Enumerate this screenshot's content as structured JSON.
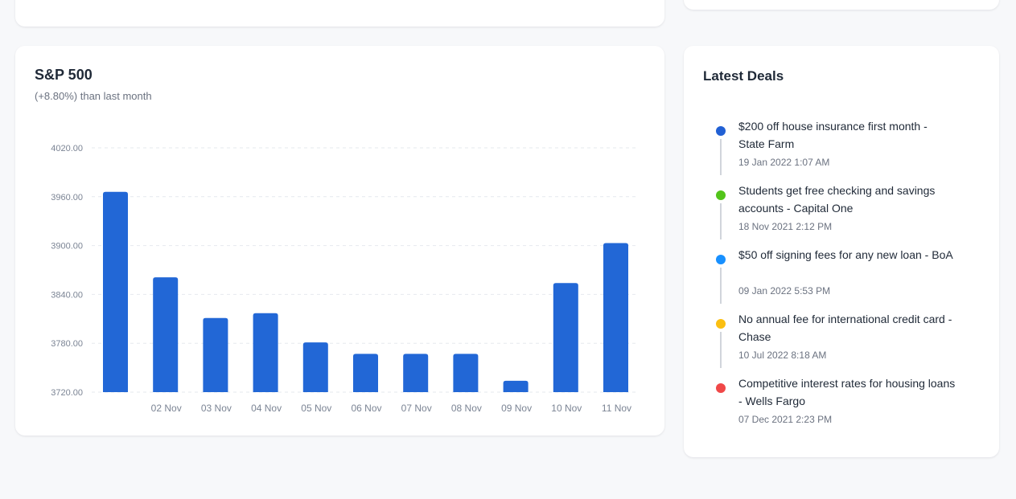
{
  "top_chart": {
    "x_tick_labels": [
      "02 Nov",
      "03 Nov",
      "04 Nov",
      "05 Nov",
      "06 Nov",
      "07 Nov",
      "08 Nov",
      "09 Nov",
      "10 Nov",
      "11 Nov"
    ]
  },
  "chart": {
    "title": "S&P 500",
    "subtitle": "(+8.80%) than last month",
    "bar_color": "#2267d6"
  },
  "chart_data": {
    "type": "bar",
    "title": "S&P 500",
    "subtitle": "(+8.80%) than last month",
    "categories": [
      "",
      "02 Nov",
      "03 Nov",
      "04 Nov",
      "05 Nov",
      "06 Nov",
      "07 Nov",
      "08 Nov",
      "09 Nov",
      "10 Nov",
      "11 Nov"
    ],
    "values": [
      3966,
      3861,
      3811,
      3817,
      3781,
      3767,
      3767,
      3767,
      3734,
      3854,
      3903
    ],
    "y_ticks": [
      "4020.00",
      "3960.00",
      "3900.00",
      "3840.00",
      "3780.00",
      "3720.00"
    ],
    "ylim": [
      3720,
      4020
    ],
    "grid": true,
    "xlabel": "",
    "ylabel": ""
  },
  "deals": {
    "title": "Latest Deals",
    "items": [
      {
        "text": "$200 off house insurance first month - State Farm",
        "time": "19 Jan 2022 1:07 AM",
        "color": "#2160d4"
      },
      {
        "text": "Students get free checking and savings accounts - Capital One",
        "time": "18 Nov 2021 2:12 PM",
        "color": "#52c41a"
      },
      {
        "text": "$50 off signing fees for any new loan - BoA",
        "time": "09 Jan 2022 5:53 PM",
        "color": "#1890ff"
      },
      {
        "text": "No annual fee for international credit card - Chase",
        "time": "10 Jul 2022 8:18 AM",
        "color": "#fbbf11"
      },
      {
        "text": "Competitive interest rates for housing loans - Wells Fargo",
        "time": "07 Dec 2021 2:23 PM",
        "color": "#f04848"
      }
    ]
  }
}
